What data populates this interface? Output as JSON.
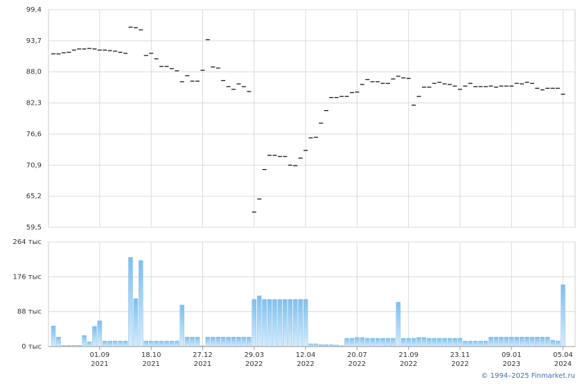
{
  "chart_data": [
    {
      "type": "dash",
      "color": "#000000",
      "values": [
        91.3,
        91.3,
        91.5,
        91.6,
        92.0,
        92.2,
        92.2,
        92.3,
        92.2,
        92.0,
        92.0,
        91.9,
        91.8,
        91.6,
        91.4,
        96.2,
        96.1,
        95.7,
        91.0,
        91.4,
        90.4,
        89.0,
        89.0,
        88.6,
        88.2,
        86.2,
        87.3,
        86.3,
        86.3,
        88.3,
        93.9,
        88.9,
        88.7,
        86.4,
        85.3,
        84.8,
        85.8,
        85.3,
        84.4,
        62.3,
        64.7,
        70.1,
        72.7,
        72.7,
        72.5,
        72.5,
        70.9,
        70.8,
        72.2,
        73.6,
        75.9,
        76.0,
        78.6,
        80.9,
        83.3,
        83.3,
        83.5,
        83.5,
        84.2,
        84.3,
        85.7,
        86.6,
        86.2,
        86.2,
        85.9,
        85.9,
        86.7,
        87.2,
        86.9,
        86.8,
        81.9,
        83.5,
        85.2,
        85.2,
        85.9,
        86.1,
        85.8,
        85.7,
        85.4,
        84.8,
        85.4,
        85.9,
        85.3,
        85.3,
        85.3,
        85.4,
        85.2,
        85.4,
        85.4,
        85.4,
        85.9,
        85.8,
        86.1,
        85.9,
        85.0,
        84.7,
        85.0,
        85.0,
        85.0,
        83.9
      ],
      "ylim": [
        59.5,
        99.4
      ],
      "yticks": [
        {
          "value": 59.5,
          "label": "59,5"
        },
        {
          "value": 65.2,
          "label": "65,2"
        },
        {
          "value": 70.9,
          "label": "70,9"
        },
        {
          "value": 76.6,
          "label": "76,6"
        },
        {
          "value": 82.3,
          "label": "82,3"
        },
        {
          "value": 88.0,
          "label": "88,0"
        },
        {
          "value": 93.7,
          "label": "93,7"
        },
        {
          "value": 99.4,
          "label": "99,4"
        }
      ],
      "grid": true
    },
    {
      "type": "bar",
      "color": "#7dbfee",
      "categories": [
        null,
        null,
        null,
        null,
        null,
        null,
        null,
        null,
        null,
        "01.09 2021",
        null,
        null,
        null,
        null,
        null,
        null,
        null,
        null,
        null,
        "18.10 2021",
        null,
        null,
        null,
        null,
        null,
        null,
        null,
        null,
        null,
        "27.12 2021",
        null,
        null,
        null,
        null,
        null,
        null,
        null,
        null,
        null,
        "29.03 2022",
        null,
        null,
        null,
        null,
        null,
        null,
        null,
        null,
        null,
        "12.04 2022",
        null,
        null,
        null,
        null,
        null,
        null,
        null,
        null,
        null,
        "20.07 2022",
        null,
        null,
        null,
        null,
        null,
        null,
        null,
        null,
        null,
        "21.09 2022",
        null,
        null,
        null,
        null,
        null,
        null,
        null,
        null,
        null,
        "23.11 2022",
        null,
        null,
        null,
        null,
        null,
        null,
        null,
        null,
        null,
        "09.01 2023",
        null,
        null,
        null,
        null,
        null,
        null,
        null,
        null,
        null,
        "05.04 2024"
      ],
      "values": [
        52,
        24,
        3,
        3,
        3,
        3,
        28,
        12,
        51,
        65,
        14,
        14,
        14,
        14,
        14,
        225,
        121,
        217,
        14,
        14,
        14,
        14,
        14,
        14,
        14,
        105,
        24,
        24,
        24,
        2,
        24,
        24,
        24,
        24,
        24,
        24,
        24,
        24,
        24,
        119,
        128,
        119,
        119,
        119,
        119,
        119,
        119,
        119,
        119,
        119,
        7,
        7,
        5,
        5,
        5,
        4,
        2,
        21,
        21,
        23,
        23,
        21,
        21,
        21,
        21,
        21,
        21,
        112,
        21,
        21,
        21,
        23,
        23,
        21,
        21,
        21,
        21,
        21,
        21,
        21,
        14,
        14,
        14,
        14,
        14,
        24,
        24,
        24,
        24,
        24,
        24,
        24,
        24,
        24,
        24,
        24,
        24,
        16,
        14,
        156
      ],
      "ylim": [
        0,
        264
      ],
      "yticks": [
        {
          "value": 0,
          "label": "0 тыс"
        },
        {
          "value": 88,
          "label": "88 тыс"
        },
        {
          "value": 176,
          "label": "176 тыс"
        },
        {
          "value": 264,
          "label": "264 тыс"
        }
      ],
      "grid": true
    }
  ],
  "footer": "© 1994–2025 Finmarket.ru"
}
